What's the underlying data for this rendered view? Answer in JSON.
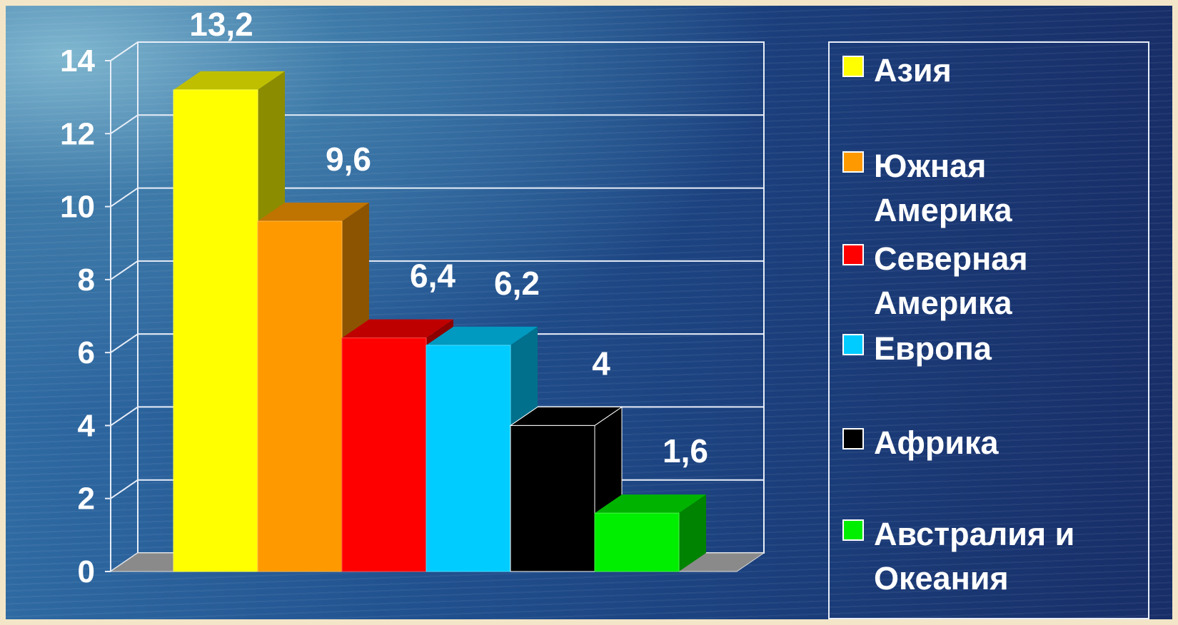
{
  "chart_data": {
    "type": "bar",
    "categories": [
      "Азия",
      "Южная Америка",
      "Северная Америка",
      "Европа",
      "Африка",
      "Австралия и Океания"
    ],
    "values": [
      13.2,
      9.6,
      6.4,
      6.2,
      4,
      1.6
    ],
    "value_labels": [
      "13,2",
      "9,6",
      "6,4",
      "6,2",
      "4",
      "1,6"
    ],
    "colors": [
      "#ffff00",
      "#ff9900",
      "#ff0000",
      "#00ccff",
      "#000000",
      "#00ee00"
    ],
    "yticks": [
      "0",
      "2",
      "4",
      "6",
      "8",
      "10",
      "12",
      "14"
    ],
    "ylim": [
      0,
      14
    ],
    "grid": true,
    "legend_position": "right",
    "title": "",
    "xlabel": "",
    "ylabel": ""
  },
  "legend": {
    "items": [
      {
        "label": "Азия",
        "color": "#ffff00"
      },
      {
        "label": "Южная\nАмерика",
        "color": "#ff9900"
      },
      {
        "label": "Северная\nАмерика",
        "color": "#ff0000"
      },
      {
        "label": "Европа",
        "color": "#00ccff"
      },
      {
        "label": "Африка",
        "color": "#000000"
      },
      {
        "label": "Австралия и\nОкеания",
        "color": "#00ee00"
      }
    ]
  }
}
